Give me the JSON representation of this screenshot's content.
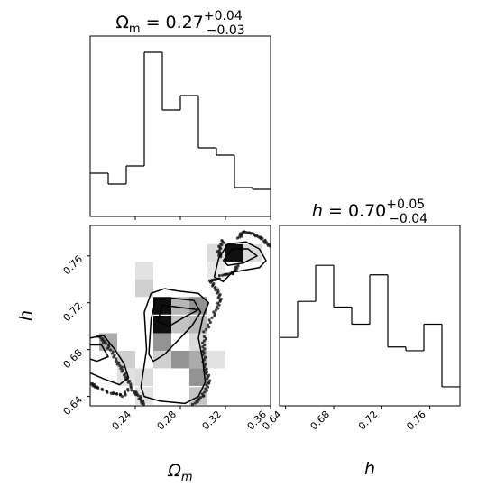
{
  "chart_data": [
    {
      "type": "histogram",
      "panel": "omega_m-marginal",
      "title_param": "Ω",
      "title_sub": "m",
      "title_value": " = 0.27",
      "title_sup": "+0.04",
      "title_inf": "−0.03",
      "xlim": [
        0.2,
        0.36
      ],
      "bin_edges": [
        0.2,
        0.216,
        0.232,
        0.248,
        0.264,
        0.28,
        0.296,
        0.312,
        0.328,
        0.344,
        0.36
      ],
      "counts": [
        0.24,
        0.18,
        0.28,
        0.91,
        0.59,
        0.67,
        0.38,
        0.34,
        0.16,
        0.15
      ]
    },
    {
      "type": "histogram",
      "panel": "h-marginal",
      "title_param": "h",
      "title_value": " = 0.70",
      "title_sup": "+0.05",
      "title_inf": "−0.04",
      "xlim": [
        0.635,
        0.785
      ],
      "xticks": [
        "0.64",
        "0.68",
        "0.72",
        "0.76"
      ],
      "xlabel": "h",
      "bin_edges": [
        0.635,
        0.65,
        0.665,
        0.68,
        0.695,
        0.71,
        0.725,
        0.74,
        0.755,
        0.77,
        0.785
      ],
      "counts": [
        0.36,
        0.55,
        0.74,
        0.52,
        0.43,
        0.69,
        0.31,
        0.29,
        0.43,
        0.1
      ]
    },
    {
      "type": "heatmap",
      "panel": "omega_m-h-joint",
      "xlim": [
        0.2,
        0.36
      ],
      "ylim": [
        0.632,
        0.786
      ],
      "xticks": [
        "0.24",
        "0.28",
        "0.32",
        "0.36"
      ],
      "yticks": [
        "0.64",
        "0.68",
        "0.72",
        "0.76"
      ],
      "xlabel": "Ω",
      "xlabel_sub": "m",
      "ylabel": "h",
      "density_cells": [
        {
          "x": 0.208,
          "y": 0.679,
          "w": 0.016,
          "h": 0.015,
          "level": 0.35
        },
        {
          "x": 0.224,
          "y": 0.664,
          "w": 0.016,
          "h": 0.015,
          "level": 0.2
        },
        {
          "x": 0.224,
          "y": 0.649,
          "w": 0.016,
          "h": 0.015,
          "level": 0.12
        },
        {
          "x": 0.24,
          "y": 0.74,
          "w": 0.016,
          "h": 0.015,
          "level": 0.12
        },
        {
          "x": 0.24,
          "y": 0.725,
          "w": 0.016,
          "h": 0.015,
          "level": 0.2
        },
        {
          "x": 0.24,
          "y": 0.649,
          "w": 0.016,
          "h": 0.015,
          "level": 0.15
        },
        {
          "x": 0.24,
          "y": 0.633,
          "w": 0.016,
          "h": 0.015,
          "level": 0.12
        },
        {
          "x": 0.256,
          "y": 0.71,
          "w": 0.016,
          "h": 0.015,
          "level": 1.0
        },
        {
          "x": 0.256,
          "y": 0.694,
          "w": 0.016,
          "h": 0.015,
          "level": 1.0
        },
        {
          "x": 0.256,
          "y": 0.679,
          "w": 0.016,
          "h": 0.015,
          "level": 0.45
        },
        {
          "x": 0.256,
          "y": 0.664,
          "w": 0.016,
          "h": 0.015,
          "level": 0.2
        },
        {
          "x": 0.272,
          "y": 0.71,
          "w": 0.016,
          "h": 0.015,
          "level": 0.3
        },
        {
          "x": 0.272,
          "y": 0.694,
          "w": 0.016,
          "h": 0.015,
          "level": 0.25
        },
        {
          "x": 0.272,
          "y": 0.664,
          "w": 0.016,
          "h": 0.015,
          "level": 0.45
        },
        {
          "x": 0.288,
          "y": 0.71,
          "w": 0.016,
          "h": 0.015,
          "level": 0.45
        },
        {
          "x": 0.288,
          "y": 0.694,
          "w": 0.016,
          "h": 0.015,
          "level": 0.3
        },
        {
          "x": 0.288,
          "y": 0.679,
          "w": 0.016,
          "h": 0.015,
          "level": 0.15
        },
        {
          "x": 0.288,
          "y": 0.664,
          "w": 0.016,
          "h": 0.015,
          "level": 0.35
        },
        {
          "x": 0.288,
          "y": 0.649,
          "w": 0.016,
          "h": 0.015,
          "level": 0.45
        },
        {
          "x": 0.288,
          "y": 0.633,
          "w": 0.016,
          "h": 0.015,
          "level": 0.25
        },
        {
          "x": 0.304,
          "y": 0.74,
          "w": 0.016,
          "h": 0.015,
          "level": 0.1
        },
        {
          "x": 0.304,
          "y": 0.664,
          "w": 0.016,
          "h": 0.015,
          "level": 0.12
        },
        {
          "x": 0.32,
          "y": 0.755,
          "w": 0.016,
          "h": 0.015,
          "level": 1.0
        },
        {
          "x": 0.336,
          "y": 0.755,
          "w": 0.016,
          "h": 0.015,
          "level": 0.15
        },
        {
          "x": 0.304,
          "y": 0.755,
          "w": 0.016,
          "h": 0.015,
          "level": 0.15
        }
      ],
      "contours": [
        [
          [
            0.245,
            0.648
          ],
          [
            0.25,
            0.68
          ],
          [
            0.248,
            0.712
          ],
          [
            0.254,
            0.728
          ],
          [
            0.266,
            0.732
          ],
          [
            0.278,
            0.73
          ],
          [
            0.296,
            0.728
          ],
          [
            0.305,
            0.72
          ],
          [
            0.3,
            0.708
          ],
          [
            0.296,
            0.69
          ],
          [
            0.3,
            0.67
          ],
          [
            0.302,
            0.652
          ],
          [
            0.296,
            0.64
          ],
          [
            0.284,
            0.634
          ],
          [
            0.262,
            0.636
          ],
          [
            0.248,
            0.64
          ],
          [
            0.245,
            0.648
          ]
        ],
        [
          [
            0.252,
            0.676
          ],
          [
            0.254,
            0.706
          ],
          [
            0.258,
            0.722
          ],
          [
            0.272,
            0.724
          ],
          [
            0.292,
            0.722
          ],
          [
            0.298,
            0.712
          ],
          [
            0.29,
            0.7
          ],
          [
            0.278,
            0.688
          ],
          [
            0.266,
            0.676
          ],
          [
            0.256,
            0.67
          ],
          [
            0.252,
            0.676
          ]
        ],
        [
          [
            0.26,
            0.704
          ],
          [
            0.264,
            0.718
          ],
          [
            0.28,
            0.716
          ],
          [
            0.296,
            0.714
          ],
          [
            0.284,
            0.708
          ],
          [
            0.27,
            0.7
          ],
          [
            0.26,
            0.704
          ]
        ],
        [
          [
            0.2,
            0.69
          ],
          [
            0.212,
            0.692
          ],
          [
            0.222,
            0.68
          ],
          [
            0.23,
            0.668
          ],
          [
            0.234,
            0.656
          ],
          [
            0.226,
            0.65
          ],
          [
            0.212,
            0.655
          ],
          [
            0.2,
            0.66
          ]
        ],
        [
          [
            0.2,
            0.684
          ],
          [
            0.21,
            0.684
          ],
          [
            0.216,
            0.674
          ],
          [
            0.206,
            0.67
          ],
          [
            0.2,
            0.672
          ]
        ],
        [
          [
            0.31,
            0.742
          ],
          [
            0.314,
            0.758
          ],
          [
            0.322,
            0.77
          ],
          [
            0.338,
            0.772
          ],
          [
            0.35,
            0.766
          ],
          [
            0.356,
            0.756
          ],
          [
            0.35,
            0.75
          ],
          [
            0.338,
            0.748
          ],
          [
            0.326,
            0.746
          ],
          [
            0.318,
            0.738
          ],
          [
            0.31,
            0.742
          ]
        ],
        [
          [
            0.318,
            0.756
          ],
          [
            0.326,
            0.766
          ],
          [
            0.34,
            0.766
          ],
          [
            0.348,
            0.76
          ],
          [
            0.336,
            0.754
          ],
          [
            0.322,
            0.752
          ],
          [
            0.318,
            0.756
          ]
        ]
      ],
      "scatter_outline": [
        [
          [
            0.208,
            0.69
          ],
          [
            0.216,
            0.682
          ],
          [
            0.224,
            0.67
          ],
          [
            0.23,
            0.66
          ],
          [
            0.236,
            0.65
          ],
          [
            0.228,
            0.64
          ],
          [
            0.218,
            0.642
          ],
          [
            0.205,
            0.648
          ],
          [
            0.2,
            0.652
          ]
        ],
        [
          [
            0.238,
            0.644
          ],
          [
            0.244,
            0.638
          ],
          [
            0.248,
            0.632
          ]
        ],
        [
          [
            0.292,
            0.632
          ],
          [
            0.3,
            0.64
          ],
          [
            0.306,
            0.652
          ],
          [
            0.302,
            0.664
          ],
          [
            0.3,
            0.68
          ],
          [
            0.302,
            0.694
          ],
          [
            0.31,
            0.71
          ],
          [
            0.316,
            0.722
          ],
          [
            0.312,
            0.732
          ],
          [
            0.306,
            0.74
          ],
          [
            0.316,
            0.742
          ],
          [
            0.326,
            0.744
          ],
          [
            0.332,
            0.752
          ]
        ],
        [
          [
            0.332,
            0.774
          ],
          [
            0.336,
            0.78
          ],
          [
            0.346,
            0.778
          ],
          [
            0.354,
            0.774
          ],
          [
            0.36,
            0.768
          ]
        ],
        [
          [
            0.318,
            0.772
          ],
          [
            0.314,
            0.764
          ],
          [
            0.316,
            0.758
          ]
        ]
      ]
    }
  ]
}
